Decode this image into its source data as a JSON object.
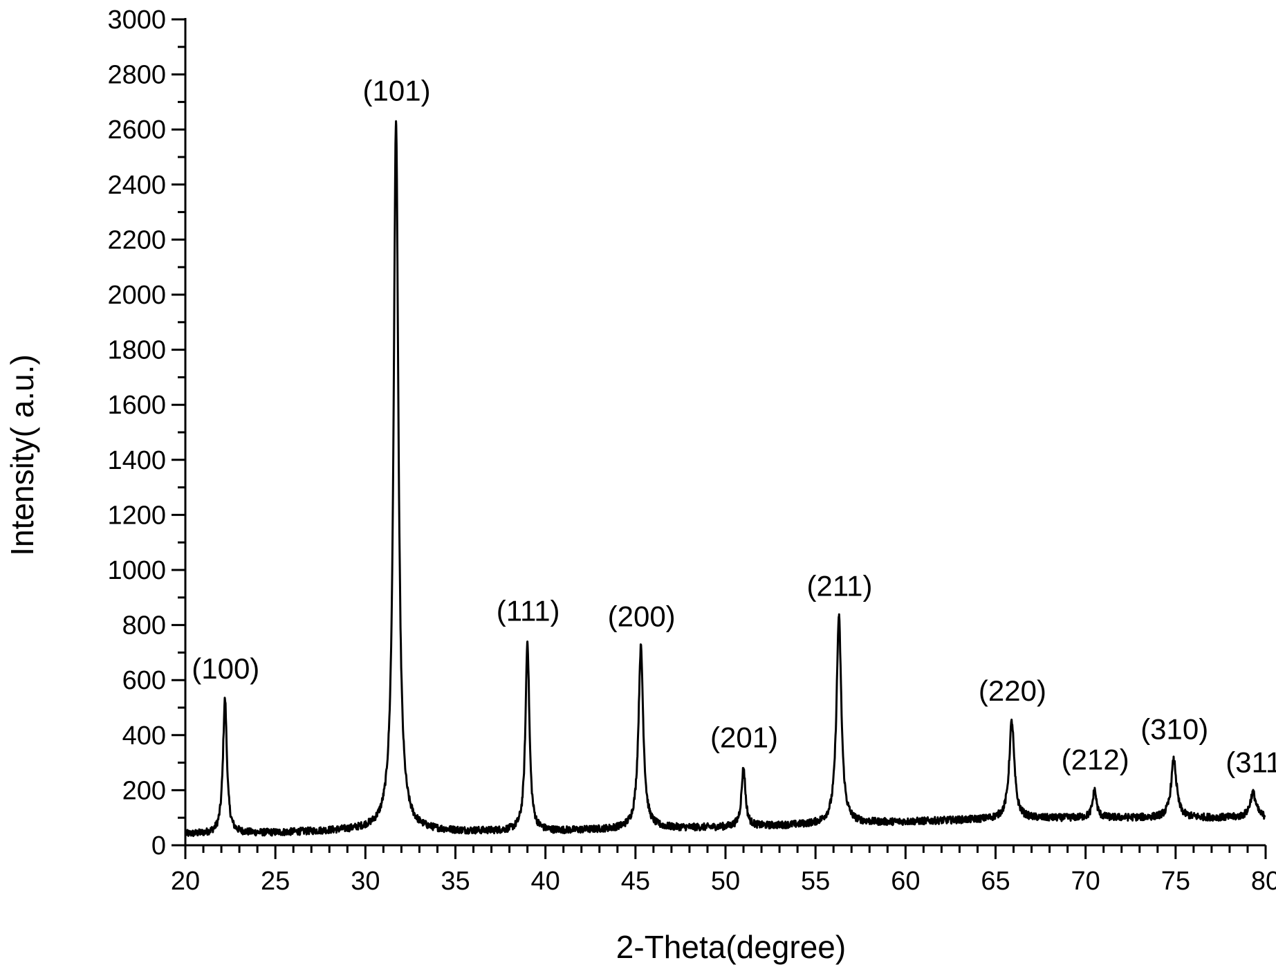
{
  "chart_data": {
    "type": "line",
    "title": "",
    "xlabel": "2-Theta(degree)",
    "ylabel": "Intensity( a.u.)",
    "xlim": [
      20,
      80
    ],
    "ylim": [
      0,
      3000
    ],
    "x_ticks": [
      20,
      25,
      30,
      35,
      40,
      45,
      50,
      55,
      60,
      65,
      70,
      75,
      80
    ],
    "y_ticks": [
      0,
      200,
      400,
      600,
      800,
      1000,
      1200,
      1400,
      1600,
      1800,
      2000,
      2200,
      2400,
      2600,
      2800,
      3000
    ],
    "grid": false,
    "legend": "none",
    "line_color": "#000000",
    "baseline": [
      [
        20,
        40
      ],
      [
        25,
        45
      ],
      [
        30,
        55
      ],
      [
        35,
        50
      ],
      [
        40,
        50
      ],
      [
        45,
        60
      ],
      [
        50,
        65
      ],
      [
        55,
        75
      ],
      [
        60,
        85
      ],
      [
        65,
        95
      ],
      [
        70,
        100
      ],
      [
        75,
        100
      ],
      [
        80,
        100
      ]
    ],
    "series": [
      {
        "peaks": [
          {
            "x": 22.2,
            "y": 530,
            "width": 0.13,
            "label": "(100)"
          },
          {
            "x": 31.7,
            "y": 2630,
            "width": 0.16,
            "label": "(101)"
          },
          {
            "x": 39.0,
            "y": 740,
            "width": 0.13,
            "label": "(111)"
          },
          {
            "x": 45.3,
            "y": 720,
            "width": 0.16,
            "label": "(200)"
          },
          {
            "x": 51.0,
            "y": 280,
            "width": 0.13,
            "label": "(201)"
          },
          {
            "x": 56.3,
            "y": 830,
            "width": 0.16,
            "label": "(211)"
          },
          {
            "x": 65.9,
            "y": 450,
            "width": 0.17,
            "label": "(220)"
          },
          {
            "x": 70.5,
            "y": 200,
            "width": 0.13,
            "label": "(212)"
          },
          {
            "x": 74.9,
            "y": 310,
            "width": 0.18,
            "label": "(310)"
          },
          {
            "x": 79.3,
            "y": 190,
            "width": 0.2,
            "label": "(311"
          }
        ]
      }
    ]
  }
}
